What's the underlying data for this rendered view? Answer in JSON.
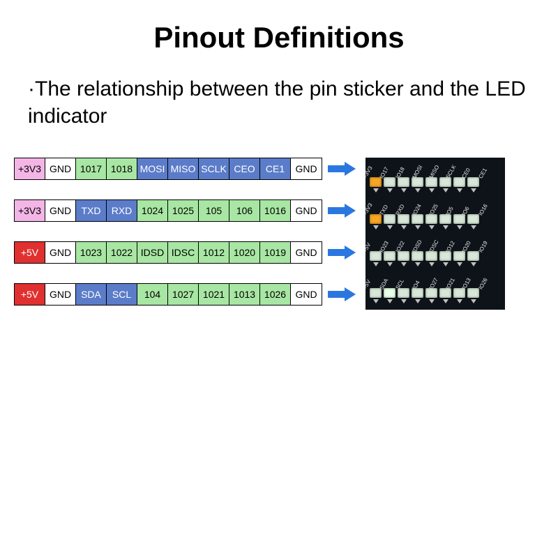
{
  "title": "Pinout Definitions",
  "subtitle": "·The relationship between the pin sticker and the LED indicator",
  "colors": {
    "pink": "#f3b5e6",
    "white": "#ffffff",
    "green": "#a8e6a3",
    "blue": "#5b7cc9",
    "red": "#e03030",
    "arrow": "#2b77e0",
    "pcb_bg": "#0e1319",
    "led_orange": "#f5a623",
    "led_off": "#d8e8d8",
    "led_glow": "#e8ffe8"
  },
  "rows": [
    {
      "pins": [
        {
          "label": "+3V3",
          "fill": "pink"
        },
        {
          "label": "GND",
          "fill": "white"
        },
        {
          "label": "1017",
          "fill": "green"
        },
        {
          "label": "1018",
          "fill": "green"
        },
        {
          "label": "MOSI",
          "fill": "blue"
        },
        {
          "label": "MISO",
          "fill": "blue"
        },
        {
          "label": "SCLK",
          "fill": "blue"
        },
        {
          "label": "CEO",
          "fill": "blue"
        },
        {
          "label": "CE1",
          "fill": "blue"
        },
        {
          "label": "GND",
          "fill": "white"
        }
      ],
      "pcb_labels": [
        "+3V3",
        "IO17",
        "IO18",
        "MOSI",
        "MISO",
        "SCLK",
        "CE0",
        "CE1"
      ],
      "pcb_leds": [
        "orange",
        "off",
        "off",
        "off",
        "off",
        "off",
        "off",
        "off"
      ]
    },
    {
      "pins": [
        {
          "label": "+3V3",
          "fill": "pink"
        },
        {
          "label": "GND",
          "fill": "white"
        },
        {
          "label": "TXD",
          "fill": "blue"
        },
        {
          "label": "RXD",
          "fill": "blue"
        },
        {
          "label": "1024",
          "fill": "green"
        },
        {
          "label": "1025",
          "fill": "green"
        },
        {
          "label": "105",
          "fill": "green"
        },
        {
          "label": "106",
          "fill": "green"
        },
        {
          "label": "1016",
          "fill": "green"
        },
        {
          "label": "GND",
          "fill": "white"
        }
      ],
      "pcb_labels": [
        "+3V3",
        "TXD",
        "RXD",
        "IO24",
        "IO25",
        "IO5",
        "IO6",
        "IO16"
      ],
      "pcb_leds": [
        "orange",
        "off",
        "off",
        "off",
        "off",
        "off",
        "off",
        "off"
      ]
    },
    {
      "pins": [
        {
          "label": "+5V",
          "fill": "red",
          "text": "#ffffff"
        },
        {
          "label": "GND",
          "fill": "white"
        },
        {
          "label": "1023",
          "fill": "green"
        },
        {
          "label": "1022",
          "fill": "green"
        },
        {
          "label": "IDSD",
          "fill": "green"
        },
        {
          "label": "IDSC",
          "fill": "green"
        },
        {
          "label": "1012",
          "fill": "green"
        },
        {
          "label": "1020",
          "fill": "green"
        },
        {
          "label": "1019",
          "fill": "green"
        },
        {
          "label": "GND",
          "fill": "white"
        }
      ],
      "pcb_labels": [
        "+5V",
        "IO23",
        "IO22",
        "IDSD",
        "IDSC",
        "IO12",
        "IO20",
        "IO19"
      ],
      "pcb_leds": [
        "off",
        "off",
        "off",
        "off",
        "off",
        "off",
        "off",
        "off"
      ]
    },
    {
      "pins": [
        {
          "label": "+5V",
          "fill": "red",
          "text": "#ffffff"
        },
        {
          "label": "GND",
          "fill": "white"
        },
        {
          "label": "SDA",
          "fill": "blue"
        },
        {
          "label": "SCL",
          "fill": "blue"
        },
        {
          "label": "104",
          "fill": "green"
        },
        {
          "label": "1027",
          "fill": "green"
        },
        {
          "label": "1021",
          "fill": "green"
        },
        {
          "label": "1013",
          "fill": "green"
        },
        {
          "label": "1026",
          "fill": "green"
        },
        {
          "label": "GND",
          "fill": "white"
        }
      ],
      "pcb_labels": [
        "+5V",
        "SDA",
        "SCL",
        "IO4",
        "IO27",
        "IO21",
        "IO13",
        "IO26"
      ],
      "pcb_leds": [
        "off",
        "glow",
        "off",
        "off",
        "off",
        "off",
        "off",
        "off"
      ]
    }
  ]
}
